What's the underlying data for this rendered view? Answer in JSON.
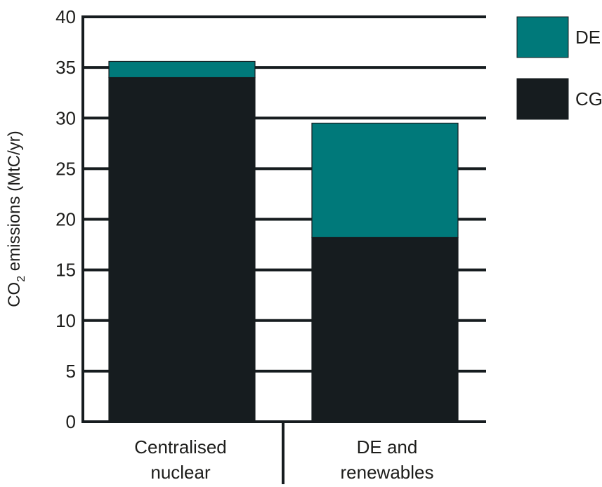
{
  "chart_data": {
    "type": "bar",
    "stacked": true,
    "categories": [
      "Centralised nuclear",
      "DE and renewables"
    ],
    "category_lines": [
      [
        "Centralised",
        "nuclear"
      ],
      [
        "DE and",
        "renewables"
      ]
    ],
    "series": [
      {
        "name": "CG",
        "values": [
          34.0,
          18.2
        ],
        "color": "#161c1f"
      },
      {
        "name": "DE",
        "values": [
          1.6,
          11.3
        ],
        "color": "#00797a"
      }
    ],
    "legend_order": [
      "DE",
      "CG"
    ],
    "title": "",
    "xlabel": "",
    "ylabel": {
      "prefix": "CO",
      "subscript": "2",
      "suffix": " emissions (MtC/yr)"
    },
    "ylim": [
      0,
      40
    ],
    "yticks": [
      0,
      5,
      10,
      15,
      20,
      25,
      30,
      35,
      40
    ],
    "grid": true,
    "legend_position": "right",
    "axis_color": "#161c1f"
  }
}
